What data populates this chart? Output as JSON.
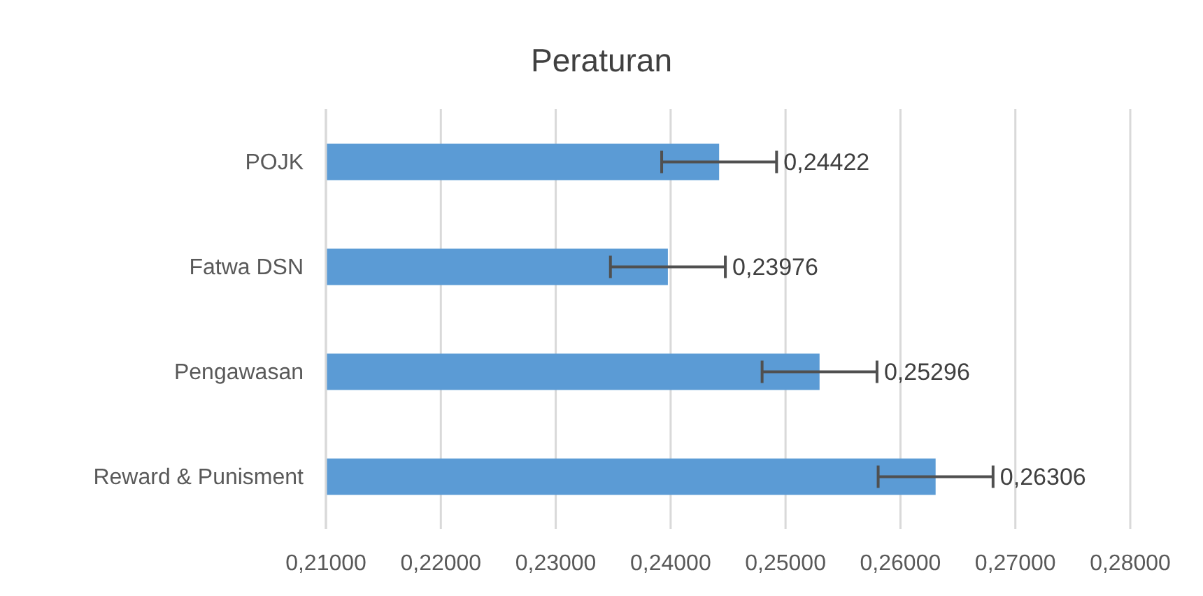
{
  "chart_data": {
    "type": "bar",
    "title": "Peraturan",
    "orientation": "horizontal",
    "categories": [
      "POJK",
      "Fatwa DSN",
      "Pengawasan",
      "Reward & Punisment"
    ],
    "values": [
      0.24422,
      0.23976,
      0.25296,
      0.26306
    ],
    "value_labels": [
      "0,24422",
      "0,23976",
      "0,25296",
      "0,26306"
    ],
    "errors": [
      0.005,
      0.005,
      0.005,
      0.005
    ],
    "color": "#5b9bd5",
    "xlim": [
      0.21,
      0.28
    ],
    "xticks": [
      {
        "value": 0.21,
        "label": "0,21000"
      },
      {
        "value": 0.22,
        "label": "0,22000"
      },
      {
        "value": 0.23,
        "label": "0,23000"
      },
      {
        "value": 0.24,
        "label": "0,24000"
      },
      {
        "value": 0.25,
        "label": "0,25000"
      },
      {
        "value": 0.26,
        "label": "0,26000"
      },
      {
        "value": 0.27,
        "label": "0,27000"
      },
      {
        "value": 0.28,
        "label": "0,28000"
      }
    ],
    "grid": "x"
  }
}
